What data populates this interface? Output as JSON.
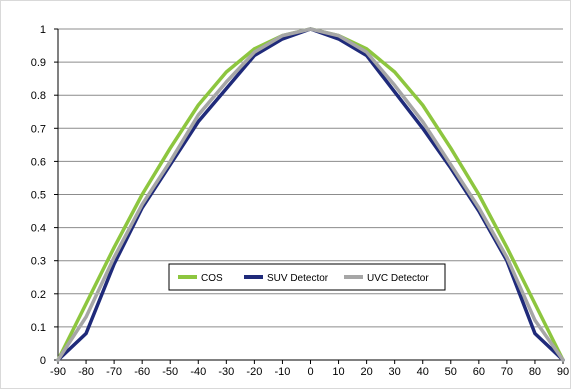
{
  "chart_data": {
    "type": "line",
    "title": "",
    "xlabel": "",
    "ylabel": "",
    "xlim": [
      -90,
      90
    ],
    "ylim": [
      0,
      1
    ],
    "x_ticks": [
      "-90",
      "-80",
      "-70",
      "-60",
      "-50",
      "-40",
      "-30",
      "-20",
      "-10",
      "0",
      "10",
      "20",
      "30",
      "40",
      "50",
      "60",
      "70",
      "80",
      "90"
    ],
    "y_ticks": [
      "0",
      "0.1",
      "0.2",
      "0.3",
      "0.4",
      "0.5",
      "0.6",
      "0.7",
      "0.8",
      "0.9",
      "1"
    ],
    "grid": "horizontal",
    "legend_placement": "center-bottom",
    "x": [
      -90,
      -80,
      -70,
      -60,
      -50,
      -40,
      -30,
      -20,
      -10,
      0,
      10,
      20,
      30,
      40,
      50,
      60,
      70,
      80,
      90
    ],
    "series": [
      {
        "name": "COS",
        "color": "#8dc63f",
        "values": [
          0,
          0.17,
          0.34,
          0.5,
          0.64,
          0.77,
          0.87,
          0.94,
          0.98,
          1,
          0.98,
          0.94,
          0.87,
          0.77,
          0.64,
          0.5,
          0.34,
          0.17,
          0
        ]
      },
      {
        "name": "SUV Detector",
        "color": "#1f2a7a",
        "values": [
          0,
          0.08,
          0.29,
          0.46,
          0.59,
          0.72,
          0.82,
          0.92,
          0.97,
          1,
          0.97,
          0.92,
          0.81,
          0.7,
          0.58,
          0.45,
          0.3,
          0.08,
          0
        ]
      },
      {
        "name": "UVC Detector",
        "color": "#a6a6a6",
        "values": [
          0,
          0.13,
          0.31,
          0.47,
          0.6,
          0.74,
          0.84,
          0.93,
          0.98,
          1,
          0.98,
          0.93,
          0.83,
          0.72,
          0.59,
          0.46,
          0.31,
          0.12,
          0
        ]
      }
    ]
  }
}
